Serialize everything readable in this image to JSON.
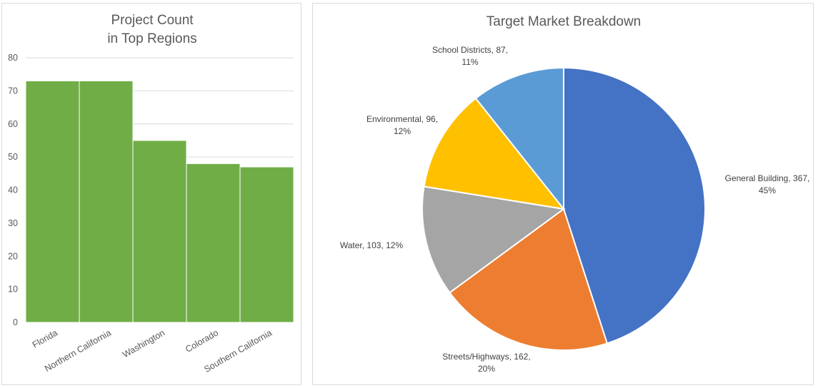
{
  "chart_data": [
    {
      "type": "bar",
      "title": "Project Count\nin Top Regions",
      "categories": [
        "Florida",
        "Northern California",
        "Washington",
        "Colorado",
        "Southern California"
      ],
      "values": [
        73,
        73,
        55,
        48,
        47
      ],
      "ylim": [
        0,
        80
      ],
      "yticks": [
        0,
        10,
        20,
        30,
        40,
        50,
        60,
        70,
        80
      ],
      "grid": true,
      "legend": "none",
      "bar_color": "#70ad47"
    },
    {
      "type": "pie",
      "title": "Target Market Breakdown",
      "legend": "none",
      "slices": [
        {
          "label": "General Building",
          "value": 367,
          "percent": "45%",
          "text": "General Building, 367,\n45%",
          "color": "#4472c4"
        },
        {
          "label": "Streets/Highways",
          "value": 162,
          "percent": "20%",
          "text": "Streets/Highways, 162,\n20%",
          "color": "#ed7d31"
        },
        {
          "label": "Water",
          "value": 103,
          "percent": "12%",
          "text": "Water, 103, 12%",
          "color": "#a5a5a5"
        },
        {
          "label": "Environmental",
          "value": 96,
          "percent": "12%",
          "text": "Environmental, 96,\n12%",
          "color": "#ffc000"
        },
        {
          "label": "School Districts",
          "value": 87,
          "percent": "11%",
          "text": "School Districts, 87,\n11%",
          "color": "#5b9bd5"
        }
      ]
    }
  ]
}
